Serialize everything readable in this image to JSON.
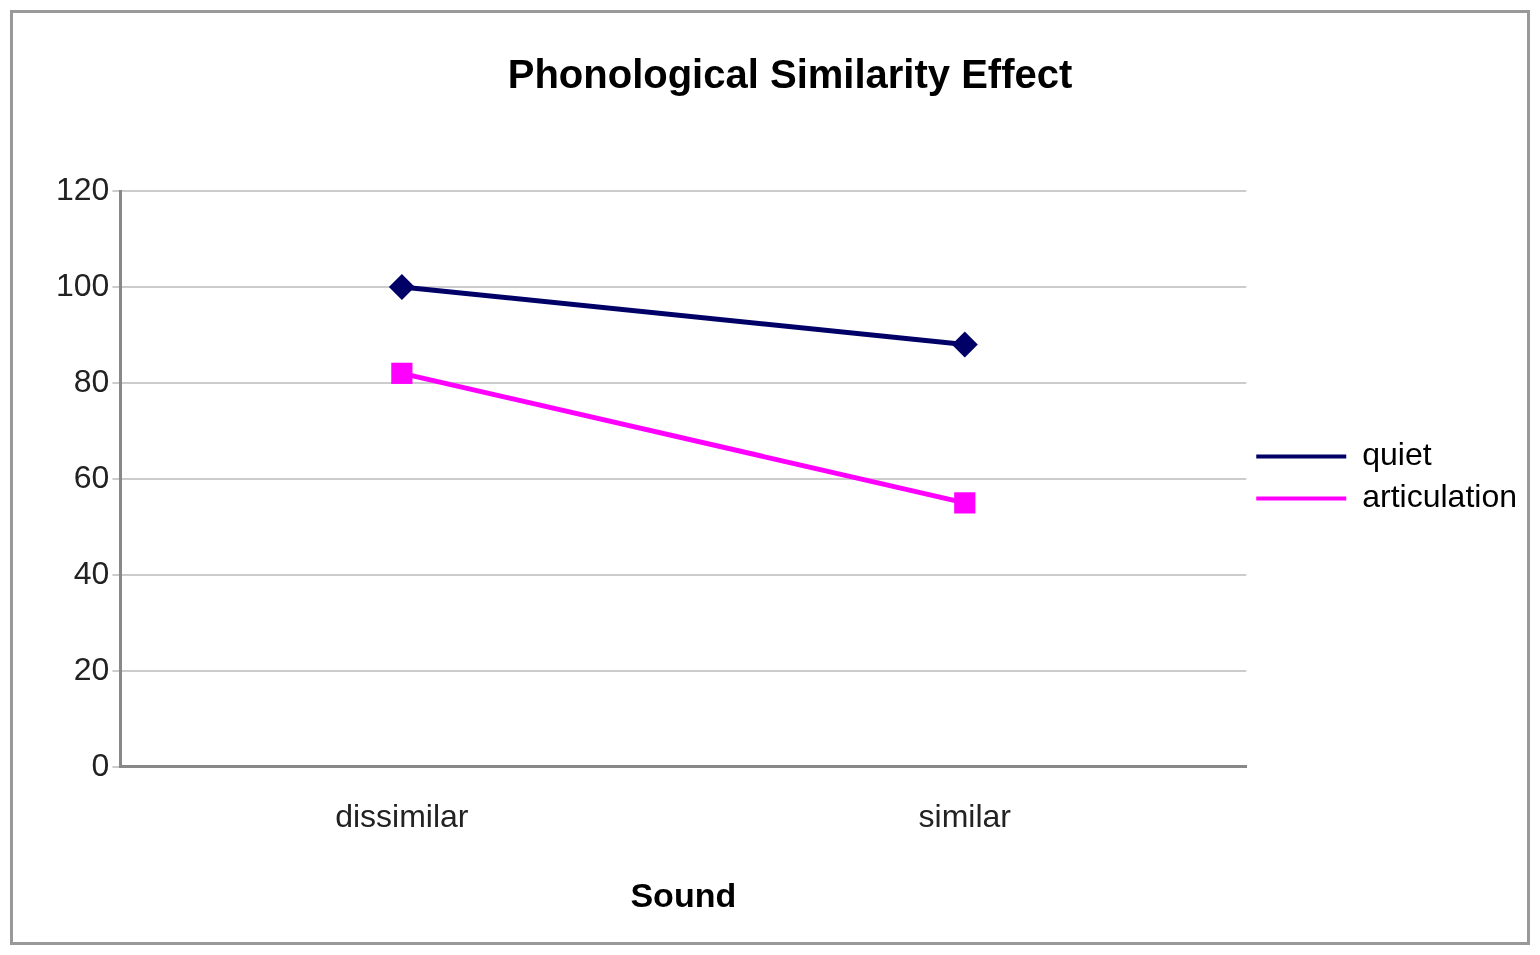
{
  "chart_data": {
    "type": "line",
    "title": "Phonological Similarity Effect",
    "xlabel": "Sound",
    "categories": [
      "dissimilar",
      "similar"
    ],
    "series": [
      {
        "name": "quiet",
        "color": "#000066",
        "values": [
          100,
          88
        ],
        "marker": "diamond"
      },
      {
        "name": "articulation",
        "color": "#ff00ff",
        "values": [
          82,
          55
        ],
        "marker": "square"
      }
    ],
    "ylim": [
      0,
      120
    ],
    "yticks": [
      0,
      20,
      40,
      60,
      80,
      100,
      120
    ],
    "grid": "y",
    "legend": "right",
    "line_style": "solid"
  }
}
